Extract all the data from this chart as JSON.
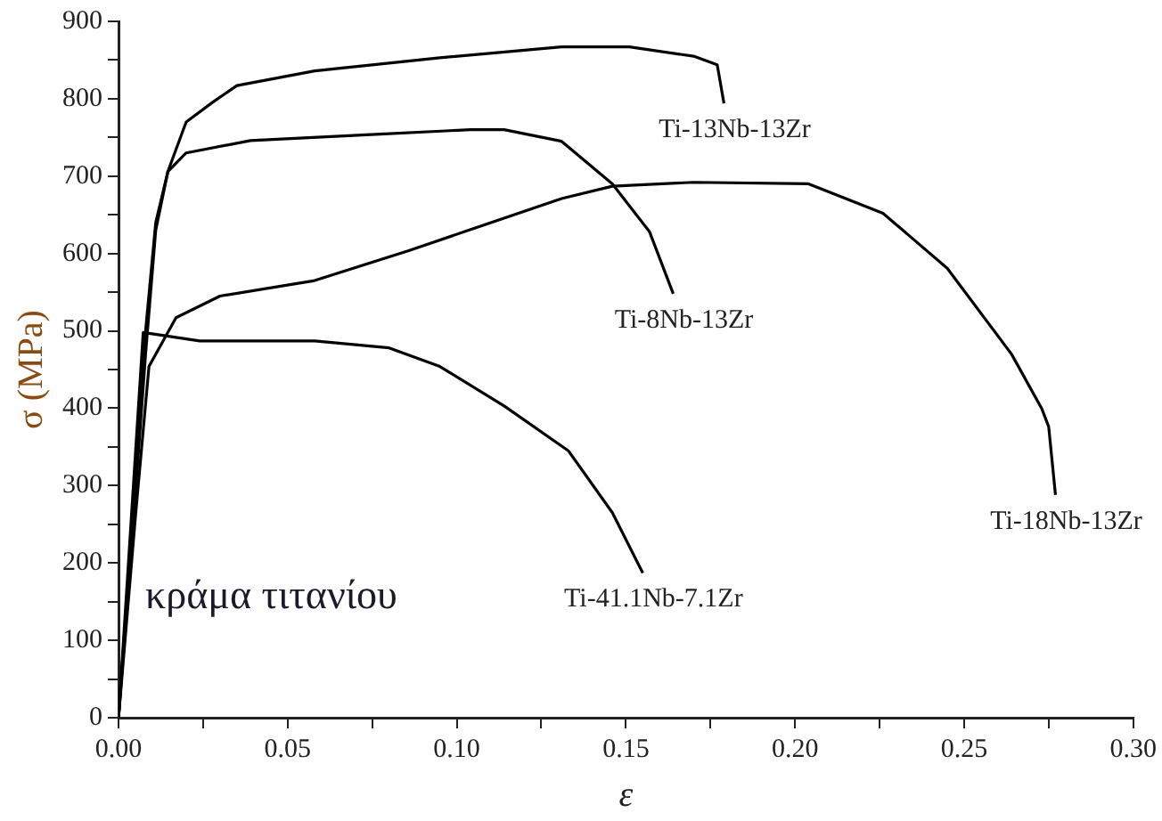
{
  "chart_data": {
    "type": "line",
    "xlabel": "ε",
    "ylabel": "σ (MPa)",
    "xlim": [
      0,
      0.3
    ],
    "ylim": [
      0,
      900
    ],
    "xticks": [
      {
        "value": 0,
        "label": "0.00"
      },
      {
        "value": 0.025,
        "label": null
      },
      {
        "value": 0.05,
        "label": "0.05"
      },
      {
        "value": 0.075,
        "label": null
      },
      {
        "value": 0.1,
        "label": "0.10"
      },
      {
        "value": 0.125,
        "label": null
      },
      {
        "value": 0.15,
        "label": "0.15"
      },
      {
        "value": 0.175,
        "label": null
      },
      {
        "value": 0.2,
        "label": "0.20"
      },
      {
        "value": 0.225,
        "label": null
      },
      {
        "value": 0.25,
        "label": "0.25"
      },
      {
        "value": 0.275,
        "label": null
      },
      {
        "value": 0.3,
        "label": "0.30"
      }
    ],
    "yticks": [
      0,
      {
        "value": 50,
        "label": null
      },
      100,
      {
        "value": 150,
        "label": null
      },
      200,
      {
        "value": 250,
        "label": null
      },
      300,
      {
        "value": 350,
        "label": null
      },
      400,
      {
        "value": 450,
        "label": null
      },
      500,
      {
        "value": 550,
        "label": null
      },
      600,
      {
        "value": 650,
        "label": null
      },
      700,
      {
        "value": 750,
        "label": null
      },
      800,
      {
        "value": 850,
        "label": null
      },
      900
    ],
    "grid": false,
    "legend": false,
    "marker": "none",
    "line_style": "solid",
    "series": [
      {
        "name": "Ti-13Nb-13Zr",
        "color": "#000000",
        "x": [
          0,
          0.004,
          0.008,
          0.011,
          0.0146,
          0.02,
          0.028,
          0.035,
          0.058,
          0.095,
          0.131,
          0.151,
          0.17,
          0.177,
          0.179
        ],
        "values": [
          0,
          250,
          500,
          640,
          706,
          770,
          796,
          817,
          836,
          853,
          867,
          867,
          855,
          844,
          794
        ]
      },
      {
        "name": "Ti-8Nb-13Zr",
        "color": "#000000",
        "x": [
          0,
          0.004,
          0.008,
          0.011,
          0.0146,
          0.02,
          0.039,
          0.076,
          0.104,
          0.114,
          0.131,
          0.146,
          0.157,
          0.164
        ],
        "values": [
          0,
          230,
          470,
          630,
          706,
          730,
          746,
          754,
          760,
          760,
          745,
          690,
          628,
          548
        ]
      },
      {
        "name": "Ti-18Nb-13Zr",
        "color": "#000000",
        "x": [
          0,
          0.005,
          0.009,
          0.017,
          0.03,
          0.058,
          0.086,
          0.131,
          0.146,
          0.17,
          0.204,
          0.226,
          0.245,
          0.264,
          0.273,
          0.275,
          0.277
        ],
        "values": [
          0,
          260,
          454,
          517,
          545,
          565,
          604,
          671,
          687,
          692,
          690,
          652,
          581,
          470,
          399,
          376,
          288
        ]
      },
      {
        "name": "Ti-41.1Nb-7.1Zr",
        "color": "#000000",
        "x": [
          0,
          0.0073,
          0.024,
          0.058,
          0.08,
          0.095,
          0.114,
          0.133,
          0.146,
          0.155
        ],
        "values": [
          0,
          498,
          487,
          487,
          478,
          454,
          403,
          345,
          265,
          187
        ]
      }
    ],
    "annotations": [
      "κράμα τιτανίου"
    ]
  }
}
